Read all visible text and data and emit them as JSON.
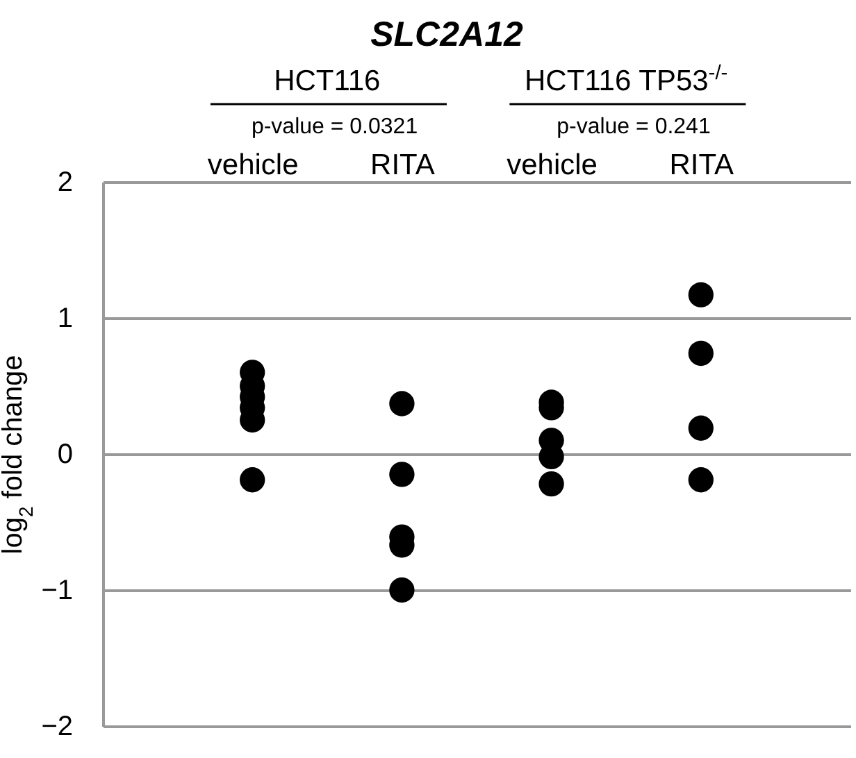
{
  "chart_data": {
    "type": "scatter",
    "title": "SLC2A12",
    "ylabel": "log$_{2}$ fold change",
    "categories": [
      "vehicle",
      "RITA",
      "vehicle",
      "RITA"
    ],
    "series": [
      {
        "color": "#000000",
        "values": [
          0.6,
          0.37,
          0.38,
          1.17
        ]
      },
      {
        "color": "#000000",
        "values": [
          0.5,
          -0.15,
          0.34,
          0.74
        ]
      },
      {
        "color": "#000000",
        "values": [
          0.42,
          -0.61,
          0.1,
          0.19
        ]
      },
      {
        "color": "#000000",
        "values": [
          0.34,
          -0.67,
          -0.02,
          -0.19
        ]
      },
      {
        "color": "#000000",
        "values": [
          0.25,
          -1.0,
          -0.22,
          null
        ]
      },
      {
        "color": "#000000",
        "values": [
          -0.19,
          null,
          null,
          null
        ]
      }
    ],
    "annotations": [
      "HCT116",
      "HCT116 TP53$^{-/-}$",
      "p-value = 0.0321",
      "p-value = 0.241"
    ],
    "ylim": [
      -2,
      2
    ],
    "yticks": [
      -2,
      -1,
      0,
      1,
      2
    ],
    "grid": "y",
    "marker": "circle"
  }
}
